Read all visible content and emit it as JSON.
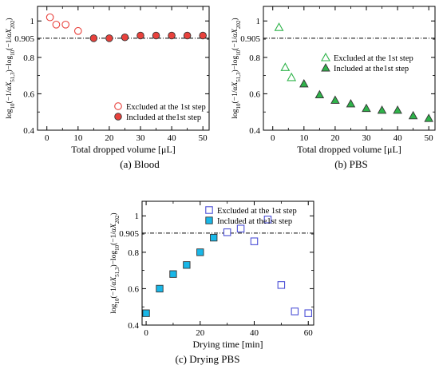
{
  "captions": {
    "a": "(a) Blood",
    "b": "(b) PBS",
    "c": "(c) Drying  PBS"
  },
  "chart_data": [
    {
      "type": "scatter",
      "panel": "a",
      "xlabel": "Total dropped volume [μL]",
      "ylabel": "log10(−1/αX51,3)−log10(−1/αX202)",
      "xlim": [
        -3,
        52
      ],
      "ylim": [
        0.4,
        1.08
      ],
      "xticks": [
        "0",
        "10",
        "20",
        "30",
        "40",
        "50"
      ],
      "yticks": [
        "0.4",
        "0.6",
        "0.8",
        "1"
      ],
      "threshold": {
        "value": 0.905,
        "label": "0.905",
        "style": "dash-dot"
      },
      "legend_position": "bottom-right",
      "marker": "circle",
      "color": "#e8413c",
      "series": [
        {
          "name": "Excluded at the 1st step",
          "filled": false,
          "x": [
            1,
            3,
            6,
            10
          ],
          "y": [
            1.02,
            0.98,
            0.98,
            0.945
          ]
        },
        {
          "name": "Included at the1st step",
          "filled": true,
          "x": [
            15,
            20,
            25,
            30,
            35,
            40,
            45,
            50
          ],
          "y": [
            0.905,
            0.905,
            0.91,
            0.92,
            0.92,
            0.92,
            0.92,
            0.92
          ]
        }
      ]
    },
    {
      "type": "scatter",
      "panel": "b",
      "xlabel": "Total dropped volume [μL]",
      "ylabel": "log10(−1/αX51,3)−log10(−1/αX202)",
      "xlim": [
        -3,
        52
      ],
      "ylim": [
        0.4,
        1.08
      ],
      "xticks": [
        "0",
        "10",
        "20",
        "30",
        "40",
        "50"
      ],
      "yticks": [
        "0.4",
        "0.6",
        "0.8",
        "1"
      ],
      "threshold": {
        "value": 0.905,
        "label": "0.905",
        "style": "dash-dot"
      },
      "legend_position": "center-right",
      "marker": "triangle",
      "color": "#2fb34a",
      "series": [
        {
          "name": "Excluded at the 1st step",
          "filled": false,
          "x": [
            2,
            4,
            6
          ],
          "y": [
            0.965,
            0.745,
            0.69
          ]
        },
        {
          "name": "Included at the1st step",
          "filled": true,
          "x": [
            10,
            15,
            20,
            25,
            30,
            35,
            40,
            45,
            50
          ],
          "y": [
            0.655,
            0.595,
            0.565,
            0.545,
            0.52,
            0.51,
            0.51,
            0.48,
            0.465
          ]
        }
      ]
    },
    {
      "type": "scatter",
      "panel": "c",
      "xlabel": "Drying time [min]",
      "ylabel": "log10(−1/αX51,3)−log10(−1/αX202)",
      "xlim": [
        -1.5,
        62
      ],
      "ylim": [
        0.4,
        1.08
      ],
      "xticks": [
        "0",
        "20",
        "40",
        "60"
      ],
      "yticks": [
        "0.4",
        "0.6",
        "0.8",
        "1"
      ],
      "threshold": {
        "value": 0.905,
        "label": "0.905",
        "style": "dash-dot"
      },
      "legend_position": "top-right",
      "marker": "square",
      "series": [
        {
          "name": "Excluded at the 1st step",
          "filled": false,
          "color": "#4b4fd6",
          "x": [
            30,
            35,
            40,
            45,
            50,
            55,
            60
          ],
          "y": [
            0.91,
            0.93,
            0.86,
            0.98,
            0.62,
            0.475,
            0.465
          ]
        },
        {
          "name": "Included at the1st step",
          "filled": true,
          "color": "#19b7e8",
          "x": [
            0,
            5,
            10,
            15,
            20,
            25
          ],
          "y": [
            0.465,
            0.6,
            0.68,
            0.73,
            0.8,
            0.88
          ]
        }
      ]
    }
  ]
}
